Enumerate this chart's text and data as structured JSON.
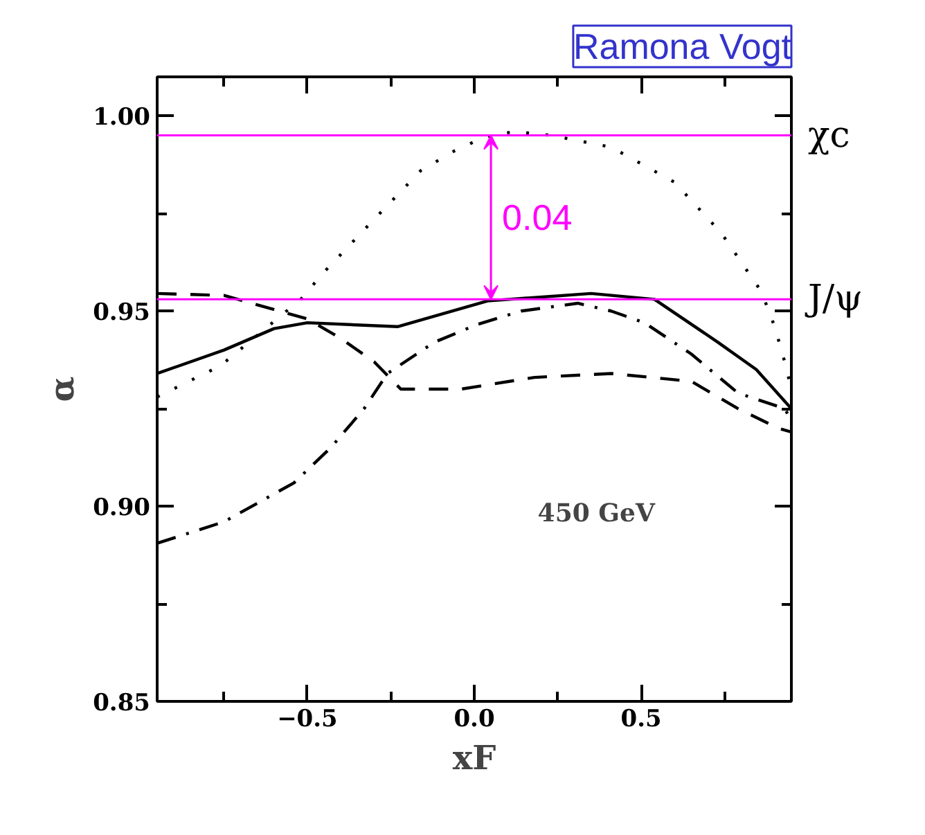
{
  "chart_data": {
    "type": "line",
    "title": "Ramona Vogt",
    "xlabel": "xF",
    "ylabel": "α",
    "xlim": [
      -0.95,
      0.95
    ],
    "ylim": [
      0.85,
      1.01
    ],
    "xticks": [
      {
        "value": -0.75,
        "label": null
      },
      {
        "value": -0.5,
        "label": "−0.5"
      },
      {
        "value": -0.25,
        "label": null
      },
      {
        "value": 0,
        "label": "0.0"
      },
      {
        "value": 0.25,
        "label": null
      },
      {
        "value": 0.5,
        "label": "0.5"
      },
      {
        "value": 0.75,
        "label": null
      }
    ],
    "yticks": [
      {
        "value": 0.85,
        "label": "0.85"
      },
      {
        "value": 0.875,
        "label": null
      },
      {
        "value": 0.9,
        "label": "0.90"
      },
      {
        "value": 0.925,
        "label": null
      },
      {
        "value": 0.95,
        "label": "0.95"
      },
      {
        "value": 0.975,
        "label": null
      },
      {
        "value": 1.0,
        "label": "1.00"
      }
    ],
    "grid": false,
    "series": [
      {
        "color": "#000000",
        "line_style": "solid",
        "x": [
          -0.95,
          -0.75,
          -0.6,
          -0.5,
          -0.23,
          0.04,
          0.35,
          0.54,
          0.73,
          0.845,
          0.95
        ],
        "values": [
          0.934,
          0.94,
          0.9455,
          0.947,
          0.946,
          0.9526,
          0.9545,
          0.953,
          0.942,
          0.935,
          0.925
        ]
      },
      {
        "color": "#000000",
        "line_style": "dotted",
        "x": [
          -0.95,
          -0.76,
          -0.52,
          -0.45,
          -0.3,
          -0.16,
          -0.06,
          0.03,
          0.12,
          0.23,
          0.41,
          0.6,
          0.74,
          0.86,
          0.9,
          0.93,
          0.95
        ],
        "values": [
          0.928,
          0.936,
          0.953,
          0.96,
          0.9735,
          0.986,
          0.991,
          0.9946,
          0.996,
          0.995,
          0.992,
          0.983,
          0.97,
          0.955,
          0.946,
          0.937,
          0.93
        ]
      },
      {
        "color": "#000000",
        "line_style": "dashed",
        "x": [
          -0.95,
          -0.75,
          -0.5,
          -0.4,
          -0.3,
          -0.22,
          -0.04,
          0.18,
          0.41,
          0.65,
          0.79,
          0.91,
          0.95
        ],
        "values": [
          0.9545,
          0.954,
          0.948,
          0.943,
          0.937,
          0.93,
          0.93,
          0.933,
          0.934,
          0.932,
          0.925,
          0.92,
          0.919
        ]
      },
      {
        "color": "#000000",
        "line_style": "dashdot",
        "x": [
          -0.95,
          -0.75,
          -0.54,
          -0.43,
          -0.33,
          -0.26,
          -0.12,
          0.01,
          0.14,
          0.31,
          0.41,
          0.51,
          0.65,
          0.79,
          0.93,
          0.95
        ],
        "values": [
          0.8905,
          0.896,
          0.906,
          0.915,
          0.925,
          0.934,
          0.942,
          0.9466,
          0.95,
          0.952,
          0.95,
          0.947,
          0.939,
          0.929,
          0.925,
          0.922
        ]
      }
    ],
    "ref_lines": [
      {
        "axis": "y",
        "value": 0.995,
        "label": "χc",
        "color": "#ff00ff"
      },
      {
        "axis": "y",
        "value": 0.953,
        "label": "J/ψ",
        "color": "#ff00ff"
      }
    ],
    "annotations": [
      "0.04",
      "450 GeV"
    ]
  }
}
